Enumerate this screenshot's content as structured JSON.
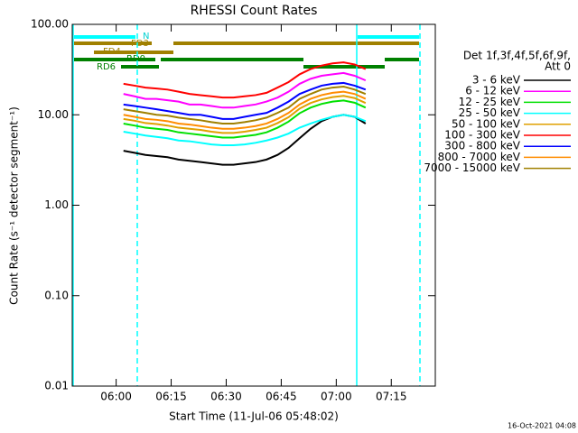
{
  "chart_data": {
    "type": "line",
    "title": "RHESSI Count Rates",
    "xlabel": "Start Time (11-Jul-06 05:48:02)",
    "ylabel": "Count Rate (s⁻¹ detector segment⁻¹)",
    "footer": "16-Oct-2021 04:08",
    "legend_title": [
      "Det 1f,3f,4f,5f,6f,9f,",
      "Att 0"
    ],
    "annotations": [
      "N",
      "FD3",
      "FD4",
      "RD0",
      "RD6"
    ],
    "log_y": true,
    "xlim": [
      "05:48:02",
      "07:27:00"
    ],
    "xticks": [
      "06:00",
      "06:15",
      "06:30",
      "06:45",
      "07:00",
      "07:15"
    ],
    "ylim": [
      0.01,
      100
    ],
    "yticks": [
      {
        "value": 100,
        "label": "100.00"
      },
      {
        "value": 10,
        "label": "10.00"
      },
      {
        "value": 1,
        "label": "1.00"
      },
      {
        "value": 0.1,
        "label": "0.10"
      },
      {
        "value": 0.01,
        "label": "0.01"
      }
    ],
    "x": [
      "06:02",
      "06:05",
      "06:08",
      "06:11",
      "06:14",
      "06:17",
      "06:20",
      "06:23",
      "06:26",
      "06:29",
      "06:32",
      "06:35",
      "06:38",
      "06:41",
      "06:44",
      "06:47",
      "06:50",
      "06:53",
      "06:56",
      "06:59",
      "07:02",
      "07:05",
      "07:08"
    ],
    "series": [
      {
        "name": "3 - 6 keV",
        "color": "#000000",
        "values": [
          4,
          3.8,
          3.6,
          3.5,
          3.4,
          3.2,
          3.1,
          3,
          2.9,
          2.8,
          2.8,
          2.9,
          3,
          3.2,
          3.6,
          4.3,
          5.5,
          7,
          8.5,
          9.5,
          10,
          9.5,
          8
        ]
      },
      {
        "name": "6 - 12 keV",
        "color": "#ff00ff",
        "values": [
          17,
          16,
          15,
          15,
          14.5,
          14,
          13,
          13,
          12.5,
          12,
          12,
          12.5,
          13,
          14,
          15.5,
          18,
          22,
          25,
          27,
          28,
          29,
          27,
          24
        ]
      },
      {
        "name": "12 - 25 keV",
        "color": "#00e000",
        "values": [
          8,
          7.6,
          7.2,
          7,
          6.8,
          6.4,
          6.2,
          6,
          5.8,
          5.6,
          5.6,
          5.8,
          6,
          6.4,
          7.2,
          8.4,
          10.4,
          12,
          13.2,
          14,
          14.4,
          13.6,
          12
        ]
      },
      {
        "name": "25 - 50 keV",
        "color": "#00ffff",
        "values": [
          6.5,
          6.2,
          5.9,
          5.7,
          5.5,
          5.2,
          5.1,
          4.9,
          4.7,
          4.6,
          4.6,
          4.7,
          4.9,
          5.2,
          5.6,
          6.2,
          7.2,
          8,
          8.8,
          9.5,
          10,
          9.5,
          8.5
        ]
      },
      {
        "name": "50 - 100 keV",
        "color": "#e0a000",
        "values": [
          9,
          8.6,
          8.1,
          7.9,
          7.6,
          7.2,
          7,
          6.8,
          6.5,
          6.3,
          6.3,
          6.5,
          6.8,
          7.2,
          8.1,
          9.4,
          11.7,
          13.5,
          14.8,
          15.7,
          16.2,
          15.3,
          13.5
        ]
      },
      {
        "name": "100 - 300 keV",
        "color": "#ff0000",
        "values": [
          22,
          21,
          20,
          19.5,
          19,
          18,
          17,
          16.5,
          16,
          15.5,
          15.5,
          16,
          16.5,
          17.5,
          20,
          23,
          28,
          32,
          35,
          37,
          38,
          36,
          32
        ]
      },
      {
        "name": "300 - 800 keV",
        "color": "#0000ff",
        "values": [
          13,
          12.5,
          12,
          11.5,
          11,
          10.5,
          10,
          10,
          9.5,
          9,
          9,
          9.5,
          10,
          10.5,
          12,
          14,
          17,
          19,
          21,
          22,
          22.5,
          21,
          19
        ]
      },
      {
        "name": "800 - 7000 keV",
        "color": "#ff8c00",
        "values": [
          10,
          9.5,
          9,
          8.8,
          8.5,
          8,
          7.8,
          7.5,
          7.2,
          7,
          7,
          7.2,
          7.5,
          8,
          9,
          10.5,
          13,
          15,
          16.5,
          17.5,
          18,
          17,
          15
        ]
      },
      {
        "name": "7000 - 15000 keV",
        "color": "#a08000",
        "values": [
          11.5,
          11,
          10.5,
          10,
          9.8,
          9.3,
          9,
          8.7,
          8.3,
          8,
          8,
          8.3,
          8.7,
          9.3,
          10.5,
          12,
          15,
          17,
          19,
          20,
          20.5,
          19,
          17
        ]
      }
    ]
  }
}
